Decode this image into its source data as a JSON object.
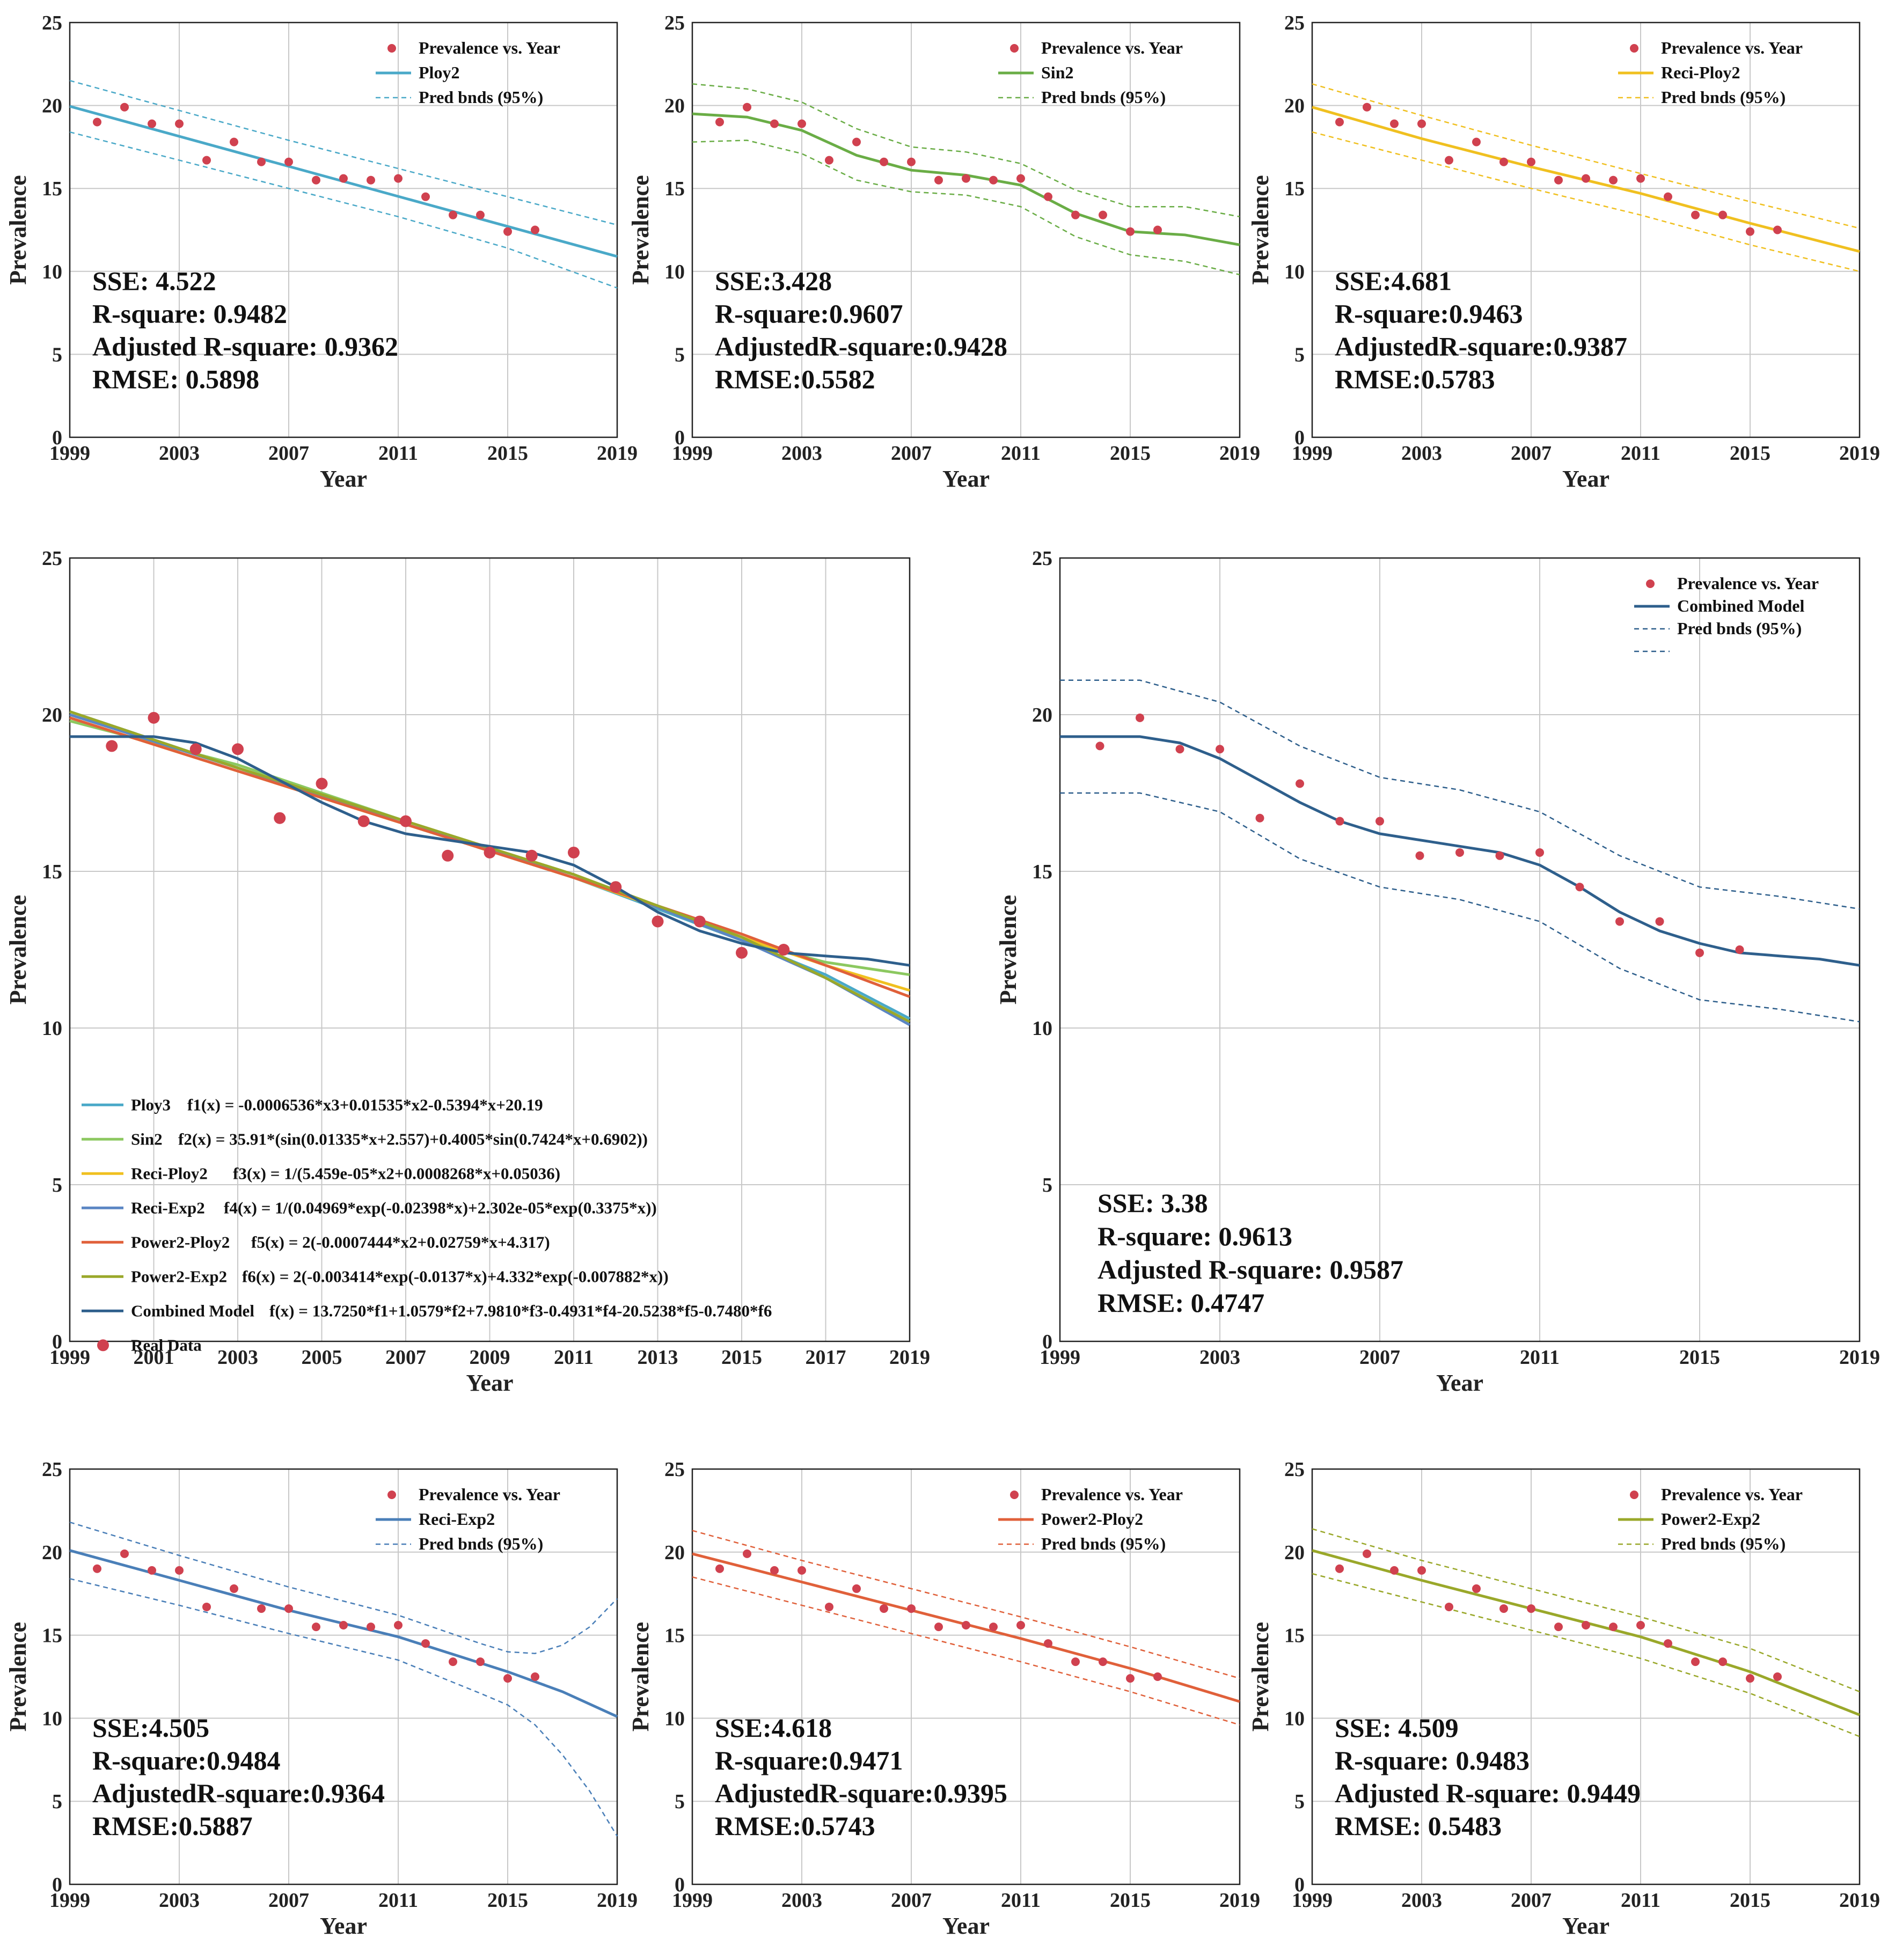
{
  "chart_data": [
    {
      "id": "p1",
      "type": "scatter",
      "title": "",
      "xlabel": "Year",
      "ylabel": "Prevalence",
      "xlim": [
        1999,
        2019
      ],
      "ylim": [
        0,
        25
      ],
      "xticks": [
        1999,
        2003,
        2007,
        2011,
        2015,
        2019
      ],
      "yticks": [
        0,
        5,
        10,
        15,
        20,
        25
      ],
      "color": "#4aa9c8",
      "legend": [
        "Prevalence vs. Year",
        "Ploy2",
        "Pred bnds (95%)"
      ],
      "fit": {
        "x": [
          1999,
          2019
        ],
        "y": [
          19.95,
          10.9
        ]
      },
      "upper": {
        "x": [
          1999,
          2003,
          2007,
          2011,
          2015,
          2019
        ],
        "y": [
          21.5,
          19.7,
          17.9,
          16.2,
          14.5,
          12.8
        ]
      },
      "lower": {
        "x": [
          1999,
          2003,
          2007,
          2011,
          2015,
          2019
        ],
        "y": [
          18.4,
          16.7,
          15.0,
          13.3,
          11.4,
          9.0
        ]
      },
      "stats": [
        "SSE: 4.522",
        "R-square: 0.9482",
        "Adjusted R-square: 0.9362",
        "RMSE: 0.5898"
      ]
    },
    {
      "id": "p2",
      "type": "scatter",
      "title": "",
      "xlabel": "Year",
      "ylabel": "Prevalence",
      "xlim": [
        1999,
        2019
      ],
      "ylim": [
        0,
        25
      ],
      "xticks": [
        1999,
        2003,
        2007,
        2011,
        2015,
        2019
      ],
      "yticks": [
        0,
        5,
        10,
        15,
        20,
        25
      ],
      "color": "#6aad46",
      "legend": [
        "Prevalence vs. Year",
        "Sin2",
        "Pred bnds (95%)"
      ],
      "fit": {
        "x": [
          1999,
          2001,
          2003,
          2005,
          2007,
          2009,
          2011,
          2013,
          2015,
          2017,
          2019
        ],
        "y": [
          19.5,
          19.3,
          18.5,
          17.0,
          16.1,
          15.8,
          15.2,
          13.5,
          12.4,
          12.2,
          11.6
        ]
      },
      "upper": {
        "x": [
          1999,
          2001,
          2003,
          2005,
          2007,
          2009,
          2011,
          2013,
          2015,
          2017,
          2019
        ],
        "y": [
          21.3,
          21.0,
          20.2,
          18.6,
          17.5,
          17.2,
          16.5,
          14.9,
          13.9,
          13.9,
          13.3
        ]
      },
      "lower": {
        "x": [
          1999,
          2001,
          2003,
          2005,
          2007,
          2009,
          2011,
          2013,
          2015,
          2017,
          2019
        ],
        "y": [
          17.8,
          17.9,
          17.1,
          15.5,
          14.8,
          14.6,
          13.9,
          12.1,
          11.0,
          10.6,
          9.8
        ]
      },
      "stats": [
        "SSE:3.428",
        "R-square:0.9607",
        "AdjustedR-square:0.9428",
        "RMSE:0.5582"
      ]
    },
    {
      "id": "p3",
      "type": "scatter",
      "title": "",
      "xlabel": "Year",
      "ylabel": "Prevalence",
      "xlim": [
        1999,
        2019
      ],
      "ylim": [
        0,
        25
      ],
      "xticks": [
        1999,
        2003,
        2007,
        2011,
        2015,
        2019
      ],
      "yticks": [
        0,
        5,
        10,
        15,
        20,
        25
      ],
      "color": "#f0c020",
      "legend": [
        "Prevalence vs. Year",
        "Reci-Ploy2",
        "Pred bnds (95%)"
      ],
      "fit": {
        "x": [
          1999,
          2003,
          2007,
          2011,
          2015,
          2019
        ],
        "y": [
          19.9,
          18.0,
          16.3,
          14.7,
          12.9,
          11.2
        ]
      },
      "upper": {
        "x": [
          1999,
          2003,
          2007,
          2011,
          2015,
          2019
        ],
        "y": [
          21.3,
          19.4,
          17.6,
          15.9,
          14.2,
          12.6
        ]
      },
      "lower": {
        "x": [
          1999,
          2003,
          2007,
          2011,
          2015,
          2019
        ],
        "y": [
          18.4,
          16.7,
          15.0,
          13.4,
          11.6,
          10.0
        ]
      },
      "stats": [
        "SSE:4.681",
        "R-square:0.9463",
        "AdjustedR-square:0.9387",
        "RMSE:0.5783"
      ]
    },
    {
      "id": "p4",
      "type": "line",
      "title": "",
      "xlabel": "Year",
      "ylabel": "Prevalence",
      "xlim": [
        1999,
        2019
      ],
      "ylim": [
        0,
        25
      ],
      "xticks": [
        1999,
        2001,
        2003,
        2005,
        2007,
        2009,
        2011,
        2013,
        2015,
        2017,
        2019
      ],
      "yticks": [
        0,
        5,
        10,
        15,
        20,
        25
      ],
      "legend_location": "lower-left",
      "series": [
        {
          "name": "Ploy3",
          "formula_name": "f1(x) = -0.0006536*x3+0.01535*x2-0.5394*x+20.19",
          "color": "#4aa9c8",
          "x": [
            1999,
            2003,
            2007,
            2011,
            2015,
            2017,
            2019
          ],
          "y": [
            20.1,
            18.3,
            16.5,
            14.8,
            12.8,
            11.7,
            10.3
          ]
        },
        {
          "name": "Sin2",
          "formula_name": "f2(x) = 35.91*(sin(0.01335*x+2.557)+0.4005*sin(0.7424*x+0.6902))",
          "color": "#8cc860",
          "x": [
            1999,
            2003,
            2007,
            2011,
            2015,
            2017,
            2019
          ],
          "y": [
            19.8,
            18.4,
            16.6,
            14.9,
            12.8,
            12.1,
            11.7
          ]
        },
        {
          "name": "Reci-Ploy2",
          "formula_name": "f3(x) = 1/(5.459e-05*x2+0.0008268*x+0.05036)",
          "color": "#f0c020",
          "x": [
            1999,
            2003,
            2007,
            2011,
            2015,
            2017,
            2019
          ],
          "y": [
            19.9,
            18.2,
            16.5,
            14.8,
            12.9,
            12.0,
            11.2
          ]
        },
        {
          "name": "Reci-Exp2",
          "formula_name": "f4(x) = 1/(0.04969*exp(-0.02398*x)+2.302e-05*exp(0.3375*x))",
          "color": "#5b86c4",
          "x": [
            1999,
            2003,
            2007,
            2011,
            2015,
            2017,
            2019
          ],
          "y": [
            20.0,
            18.3,
            16.5,
            14.9,
            12.8,
            11.6,
            10.1
          ]
        },
        {
          "name": "Power2-Ploy2",
          "formula_name": "f5(x) = 2(-0.0007444*x2+0.02759*x+4.317)",
          "color": "#e0603a",
          "x": [
            1999,
            2003,
            2007,
            2011,
            2015,
            2017,
            2019
          ],
          "y": [
            19.9,
            18.2,
            16.5,
            14.8,
            13.0,
            12.0,
            11.0
          ]
        },
        {
          "name": "Power2-Exp2",
          "formula_name": "f6(x) = 2(-0.003414*exp(-0.0137*x)+4.332*exp(-0.007882*x))",
          "color": "#9aa82a",
          "x": [
            1999,
            2003,
            2007,
            2011,
            2015,
            2017,
            2019
          ],
          "y": [
            20.1,
            18.3,
            16.6,
            14.9,
            12.9,
            11.6,
            10.2
          ]
        },
        {
          "name": "Combined Model",
          "formula_name": "f(x) = 13.7250*f1+1.0579*f2+7.9810*f3-0.4931*f4-20.5238*f5-0.7480*f6",
          "color": "#2e5f8c",
          "x": [
            1999,
            2000,
            2001,
            2002,
            2003,
            2004,
            2005,
            2006,
            2007,
            2008,
            2009,
            2010,
            2011,
            2012,
            2013,
            2014,
            2015,
            2016,
            2017,
            2018,
            2019
          ],
          "y": [
            19.3,
            19.3,
            19.3,
            19.1,
            18.6,
            17.9,
            17.2,
            16.6,
            16.2,
            16.0,
            15.8,
            15.6,
            15.2,
            14.5,
            13.7,
            13.1,
            12.7,
            12.4,
            12.3,
            12.2,
            12.0
          ]
        }
      ],
      "real_data_label": "Real Data",
      "stats": []
    },
    {
      "id": "p5",
      "type": "scatter",
      "title": "",
      "xlabel": "Year",
      "ylabel": "Prevalence",
      "xlim": [
        1999,
        2019
      ],
      "ylim": [
        0,
        25
      ],
      "xticks": [
        1999,
        2003,
        2007,
        2011,
        2015,
        2019
      ],
      "yticks": [
        0,
        5,
        10,
        15,
        20,
        25
      ],
      "color": "#2e5f8c",
      "legend": [
        "Prevalence vs. Year",
        "Combined Model",
        "Pred bnds (95%)",
        ""
      ],
      "fit": {
        "x": [
          1999,
          2000,
          2001,
          2002,
          2003,
          2004,
          2005,
          2006,
          2007,
          2008,
          2009,
          2010,
          2011,
          2012,
          2013,
          2014,
          2015,
          2016,
          2017,
          2018,
          2019
        ],
        "y": [
          19.3,
          19.3,
          19.3,
          19.1,
          18.6,
          17.9,
          17.2,
          16.6,
          16.2,
          16.0,
          15.8,
          15.6,
          15.2,
          14.5,
          13.7,
          13.1,
          12.7,
          12.4,
          12.3,
          12.2,
          12.0
        ]
      },
      "upper": {
        "x": [
          1999,
          2001,
          2003,
          2005,
          2007,
          2009,
          2011,
          2013,
          2015,
          2017,
          2019
        ],
        "y": [
          21.1,
          21.1,
          20.4,
          19.0,
          18.0,
          17.6,
          16.9,
          15.5,
          14.5,
          14.2,
          13.8
        ]
      },
      "lower": {
        "x": [
          1999,
          2001,
          2003,
          2005,
          2007,
          2009,
          2011,
          2013,
          2015,
          2017,
          2019
        ],
        "y": [
          17.5,
          17.5,
          16.9,
          15.4,
          14.5,
          14.1,
          13.4,
          11.9,
          10.9,
          10.6,
          10.2
        ]
      },
      "stats": [
        "SSE: 3.38",
        "R-square: 0.9613",
        "Adjusted R-square: 0.9587",
        "RMSE: 0.4747"
      ]
    },
    {
      "id": "p6",
      "type": "scatter",
      "title": "",
      "xlabel": "Year",
      "ylabel": "Prevalence",
      "xlim": [
        1999,
        2019
      ],
      "ylim": [
        0,
        25
      ],
      "xticks": [
        1999,
        2003,
        2007,
        2011,
        2015,
        2019
      ],
      "yticks": [
        0,
        5,
        10,
        15,
        20,
        25
      ],
      "color": "#4a7fb8",
      "legend": [
        "Prevalence vs. Year",
        "Reci-Exp2",
        "Pred bnds (95%)"
      ],
      "fit": {
        "x": [
          1999,
          2003,
          2007,
          2011,
          2015,
          2017,
          2019
        ],
        "y": [
          20.1,
          18.3,
          16.5,
          14.9,
          12.8,
          11.6,
          10.1
        ]
      },
      "upper": {
        "x": [
          1999,
          2003,
          2007,
          2011,
          2014,
          2015,
          2016,
          2017,
          2018,
          2019
        ],
        "y": [
          21.8,
          19.8,
          17.9,
          16.2,
          14.5,
          14.0,
          13.9,
          14.4,
          15.5,
          17.2
        ]
      },
      "lower": {
        "x": [
          1999,
          2003,
          2007,
          2011,
          2014,
          2015,
          2016,
          2017,
          2018,
          2019
        ],
        "y": [
          18.4,
          16.8,
          15.1,
          13.5,
          11.5,
          10.8,
          9.6,
          7.8,
          5.6,
          2.9
        ]
      },
      "stats": [
        "SSE:4.505",
        "R-square:0.9484",
        "AdjustedR-square:0.9364",
        "RMSE:0.5887"
      ]
    },
    {
      "id": "p7",
      "type": "scatter",
      "title": "",
      "xlabel": "Year",
      "ylabel": "Prevalence",
      "xlim": [
        1999,
        2019
      ],
      "ylim": [
        0,
        25
      ],
      "xticks": [
        1999,
        2003,
        2007,
        2011,
        2015,
        2019
      ],
      "yticks": [
        0,
        5,
        10,
        15,
        20,
        25
      ],
      "color": "#e0603a",
      "legend": [
        "Prevalence vs. Year",
        "Power2-Ploy2",
        "Pred bnds (95%)"
      ],
      "fit": {
        "x": [
          1999,
          2003,
          2007,
          2011,
          2015,
          2019
        ],
        "y": [
          19.9,
          18.2,
          16.5,
          14.8,
          13.0,
          11.0
        ]
      },
      "upper": {
        "x": [
          1999,
          2003,
          2007,
          2011,
          2015,
          2019
        ],
        "y": [
          21.3,
          19.5,
          17.8,
          16.1,
          14.3,
          12.4
        ]
      },
      "lower": {
        "x": [
          1999,
          2003,
          2007,
          2011,
          2015,
          2019
        ],
        "y": [
          18.5,
          16.8,
          15.1,
          13.4,
          11.6,
          9.6
        ]
      },
      "stats": [
        "SSE:4.618",
        "R-square:0.9471",
        "AdjustedR-square:0.9395",
        "RMSE:0.5743"
      ]
    },
    {
      "id": "p8",
      "type": "scatter",
      "title": "",
      "xlabel": "Year",
      "ylabel": "Prevalence",
      "xlim": [
        1999,
        2019
      ],
      "ylim": [
        0,
        25
      ],
      "xticks": [
        1999,
        2003,
        2007,
        2011,
        2015,
        2019
      ],
      "yticks": [
        0,
        5,
        10,
        15,
        20,
        25
      ],
      "color": "#9aa82a",
      "legend": [
        "Prevalence vs. Year",
        "Power2-Exp2",
        "Pred bnds (95%)"
      ],
      "fit": {
        "x": [
          1999,
          2003,
          2007,
          2011,
          2015,
          2019
        ],
        "y": [
          20.1,
          18.3,
          16.6,
          14.9,
          12.8,
          10.2
        ]
      },
      "upper": {
        "x": [
          1999,
          2003,
          2007,
          2011,
          2015,
          2019
        ],
        "y": [
          21.4,
          19.5,
          17.8,
          16.1,
          14.2,
          11.6
        ]
      },
      "lower": {
        "x": [
          1999,
          2003,
          2007,
          2011,
          2015,
          2019
        ],
        "y": [
          18.7,
          17.0,
          15.3,
          13.6,
          11.5,
          8.9
        ]
      },
      "stats": [
        "SSE: 4.509",
        "R-square: 0.9483",
        "Adjusted R-square: 0.9449",
        "RMSE: 0.5483"
      ]
    }
  ],
  "observations": {
    "x": [
      2000,
      2001,
      2002,
      2003,
      2004,
      2005,
      2006,
      2007,
      2008,
      2009,
      2010,
      2011,
      2012,
      2013,
      2014,
      2015,
      2016
    ],
    "y": [
      19.0,
      19.9,
      18.9,
      18.9,
      16.7,
      17.8,
      16.6,
      16.6,
      15.5,
      15.6,
      15.5,
      15.6,
      14.5,
      13.4,
      13.4,
      12.4,
      12.5
    ]
  },
  "colors": {
    "marker": "#d0414f",
    "grid": "#c8c8c8",
    "axis": "#222222"
  }
}
